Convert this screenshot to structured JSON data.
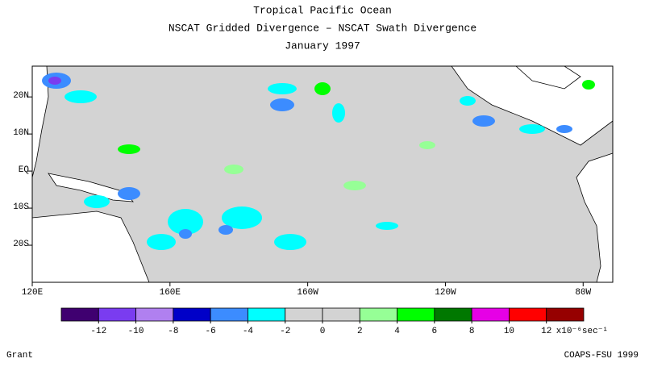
{
  "chart_data": {
    "type": "map",
    "title": "Tropical Pacific Ocean",
    "subtitle": "NSCAT Gridded Divergence – NSCAT Swath Divergence",
    "date": "January 1997",
    "xlim": [
      120,
      288.6
    ],
    "ylim": [
      -30,
      28.3
    ],
    "xticks": [
      {
        "value": 120,
        "label": "120E"
      },
      {
        "value": 160,
        "label": "160E"
      },
      {
        "value": 200,
        "label": "160W"
      },
      {
        "value": 240,
        "label": "120W"
      },
      {
        "value": 280,
        "label": "80W"
      }
    ],
    "yticks": [
      {
        "value": 20,
        "label": "20N"
      },
      {
        "value": 10,
        "label": "10N"
      },
      {
        "value": 0,
        "label": "EQ"
      },
      {
        "value": -10,
        "label": "10S"
      },
      {
        "value": -20,
        "label": "20S"
      }
    ],
    "colorbar": {
      "range": [
        -14,
        14
      ],
      "ticks": [
        -12,
        -10,
        -8,
        -6,
        -4,
        -2,
        0,
        2,
        4,
        6,
        8,
        10,
        12
      ],
      "colors": [
        "#3f0070",
        "#7a3cf0",
        "#b080f0",
        "#0000c8",
        "#3c8cff",
        "#00ffff",
        "#d3d3d3",
        "#d3d3d3",
        "#96ff96",
        "#00ff00",
        "#007800",
        "#e600e6",
        "#ff0000",
        "#960000"
      ],
      "unit": "x10⁻⁶sec⁻¹"
    },
    "footer_left": "Grant",
    "footer_right": "COAPS-FSU 1999"
  }
}
